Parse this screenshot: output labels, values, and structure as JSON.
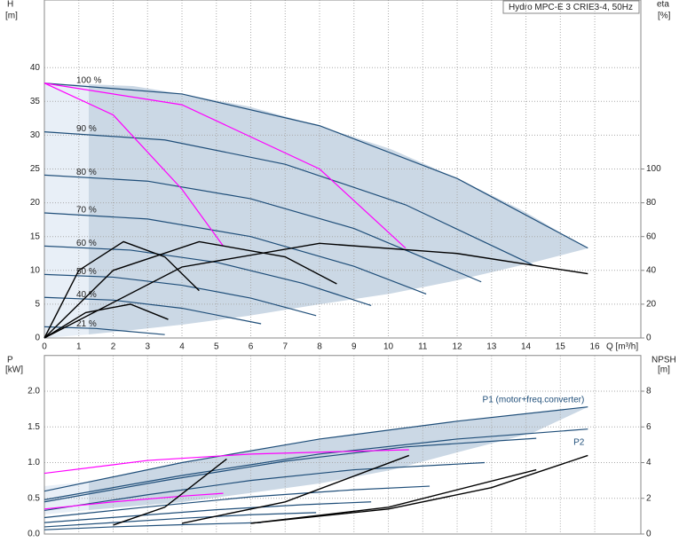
{
  "chart_data": [
    {
      "type": "line",
      "title": "Hydro MPC-E 3 CRIE3-4, 50Hz",
      "y_label": "H",
      "y_unit": "[m]",
      "y2_label": "eta",
      "y2_unit": "[%]",
      "x_label": "Q [m³/h]",
      "xlim": [
        0,
        17.34
      ],
      "xticks": [
        0,
        1,
        2,
        3,
        4,
        5,
        6,
        7,
        8,
        9,
        10,
        11,
        12,
        13,
        14,
        15,
        16
      ],
      "ylim": [
        0,
        50
      ],
      "yticks": [
        0,
        5,
        10,
        15,
        20,
        25,
        30,
        35,
        40
      ],
      "y2lim": [
        0,
        200
      ],
      "y2ticks": [
        0,
        20,
        40,
        60,
        80,
        100
      ],
      "grid": true,
      "series": [
        {
          "name": "100 %",
          "color": "#1f4e79",
          "x": [
            0,
            4,
            8,
            12,
            15.8
          ],
          "values": [
            37.7,
            36.1,
            31.4,
            23.6,
            13.3
          ]
        },
        {
          "name": "90 %",
          "color": "#1f4e79",
          "x": [
            0,
            3.5,
            7,
            10.5,
            14.2
          ],
          "values": [
            30.5,
            29.3,
            25.7,
            19.7,
            10.8
          ]
        },
        {
          "name": "80 %",
          "color": "#1f4e79",
          "x": [
            0,
            3,
            6,
            9,
            12.7
          ],
          "values": [
            24.1,
            23.2,
            20.6,
            16.2,
            8.3
          ]
        },
        {
          "name": "70 %",
          "color": "#1f4e79",
          "x": [
            0,
            3,
            6,
            9,
            11.1
          ],
          "values": [
            18.5,
            17.6,
            15.0,
            10.6,
            6.5
          ]
        },
        {
          "name": "60 %",
          "color": "#1f4e79",
          "x": [
            0,
            2.5,
            5,
            7.5,
            9.5
          ],
          "values": [
            13.6,
            13.0,
            11.2,
            8.1,
            4.8
          ]
        },
        {
          "name": "50 %",
          "color": "#1f4e79",
          "x": [
            0,
            2,
            4,
            6,
            7.9
          ],
          "values": [
            9.4,
            9.0,
            7.8,
            5.9,
            3.3
          ]
        },
        {
          "name": "40 %",
          "color": "#1f4e79",
          "x": [
            0,
            2,
            4,
            6.3
          ],
          "values": [
            6.0,
            5.6,
            4.4,
            2.1
          ]
        },
        {
          "name": "21 %",
          "color": "#1f4e79",
          "x": [
            0,
            1.5,
            3.5
          ],
          "values": [
            1.66,
            1.4,
            0.5
          ]
        },
        {
          "color": "#ff00ff",
          "x": [
            0,
            2,
            4,
            5.2
          ],
          "values": [
            37.7,
            33,
            22,
            13.6
          ]
        },
        {
          "color": "#ff00ff",
          "x": [
            0,
            4,
            8,
            10.5
          ],
          "values": [
            37.7,
            34.5,
            25,
            13.3
          ]
        },
        {
          "color": "#000000",
          "axis": "y2",
          "x": [
            0,
            1,
            2.3,
            3.5,
            4.5
          ],
          "values": [
            0,
            40,
            57,
            48,
            28
          ]
        },
        {
          "color": "#000000",
          "axis": "y2",
          "x": [
            0,
            2,
            4.5,
            7,
            8.5
          ],
          "values": [
            0,
            40,
            57,
            48,
            32
          ]
        },
        {
          "color": "#000000",
          "axis": "y2",
          "x": [
            0,
            4,
            8,
            12,
            15.8
          ],
          "values": [
            0,
            42,
            56,
            50,
            38
          ]
        },
        {
          "color": "#000000",
          "axis": "y2",
          "x": [
            0,
            1.2,
            2.5,
            3.6
          ],
          "values": [
            0,
            15,
            20,
            11
          ]
        }
      ]
    },
    {
      "type": "line",
      "y_label": "P",
      "y_unit": "[kW]",
      "y2_label": "NPSH",
      "y2_unit": "[m]",
      "xlim": [
        0,
        17.34
      ],
      "ylim": [
        0,
        2.5
      ],
      "yticks": [
        {
          "value": 0,
          "label": "0.0"
        },
        0.5,
        {
          "value": 1,
          "label": "1.0"
        },
        1.5,
        {
          "value": 2,
          "label": "2.0"
        }
      ],
      "y2lim": [
        0,
        10
      ],
      "y2ticks": [
        0,
        2,
        4,
        6,
        8
      ],
      "grid": true,
      "series": [
        {
          "name": "P1 (motor+freq.converter)",
          "color": "#1f4e79",
          "x": [
            0,
            4,
            8,
            12,
            15.8
          ],
          "values": [
            0.6,
            1.0,
            1.33,
            1.58,
            1.78
          ]
        },
        {
          "name": "P2",
          "color": "#1f4e79",
          "x": [
            0,
            4,
            8,
            12,
            15.8
          ],
          "values": [
            0.48,
            0.82,
            1.12,
            1.33,
            1.47
          ]
        },
        {
          "color": "#1f4e79",
          "x": [
            0,
            3.5,
            7,
            10.5,
            14.3
          ],
          "values": [
            0.45,
            0.75,
            1.02,
            1.22,
            1.34
          ]
        },
        {
          "color": "#1f4e79",
          "x": [
            0,
            3,
            6,
            9,
            12.8
          ],
          "values": [
            0.33,
            0.55,
            0.75,
            0.9,
            1.0
          ]
        },
        {
          "color": "#1f4e79",
          "x": [
            0,
            3,
            6,
            9,
            11.2
          ],
          "values": [
            0.23,
            0.38,
            0.52,
            0.62,
            0.67
          ]
        },
        {
          "color": "#1f4e79",
          "x": [
            0,
            2.5,
            5,
            7.5,
            9.5
          ],
          "values": [
            0.16,
            0.25,
            0.34,
            0.41,
            0.45
          ]
        },
        {
          "color": "#1f4e79",
          "x": [
            0,
            2,
            4,
            6,
            7.9
          ],
          "values": [
            0.1,
            0.16,
            0.22,
            0.27,
            0.3
          ]
        },
        {
          "color": "#1f4e79",
          "x": [
            0,
            2,
            4,
            6.3
          ],
          "values": [
            0.06,
            0.1,
            0.13,
            0.16
          ]
        },
        {
          "color": "#ff00ff",
          "x": [
            0,
            2,
            4,
            5.2
          ],
          "values": [
            0.35,
            0.45,
            0.53,
            0.57
          ]
        },
        {
          "color": "#ff00ff",
          "x": [
            0,
            3,
            6,
            10.6
          ],
          "values": [
            0.85,
            1.03,
            1.12,
            1.18
          ]
        },
        {
          "color": "#000000",
          "axis": "y2",
          "x": [
            2,
            3.5,
            5.3
          ],
          "values": [
            0.5,
            1.5,
            4.2
          ]
        },
        {
          "color": "#000000",
          "axis": "y2",
          "x": [
            4,
            7,
            10.6
          ],
          "values": [
            0.6,
            1.8,
            4.4
          ]
        },
        {
          "color": "#000000",
          "axis": "y2",
          "x": [
            6,
            10,
            14.3
          ],
          "values": [
            0.6,
            1.5,
            3.6
          ]
        },
        {
          "color": "#000000",
          "axis": "y2",
          "x": [
            6,
            10,
            13,
            15.8
          ],
          "values": [
            0.6,
            1.4,
            2.6,
            4.4
          ]
        }
      ]
    }
  ]
}
